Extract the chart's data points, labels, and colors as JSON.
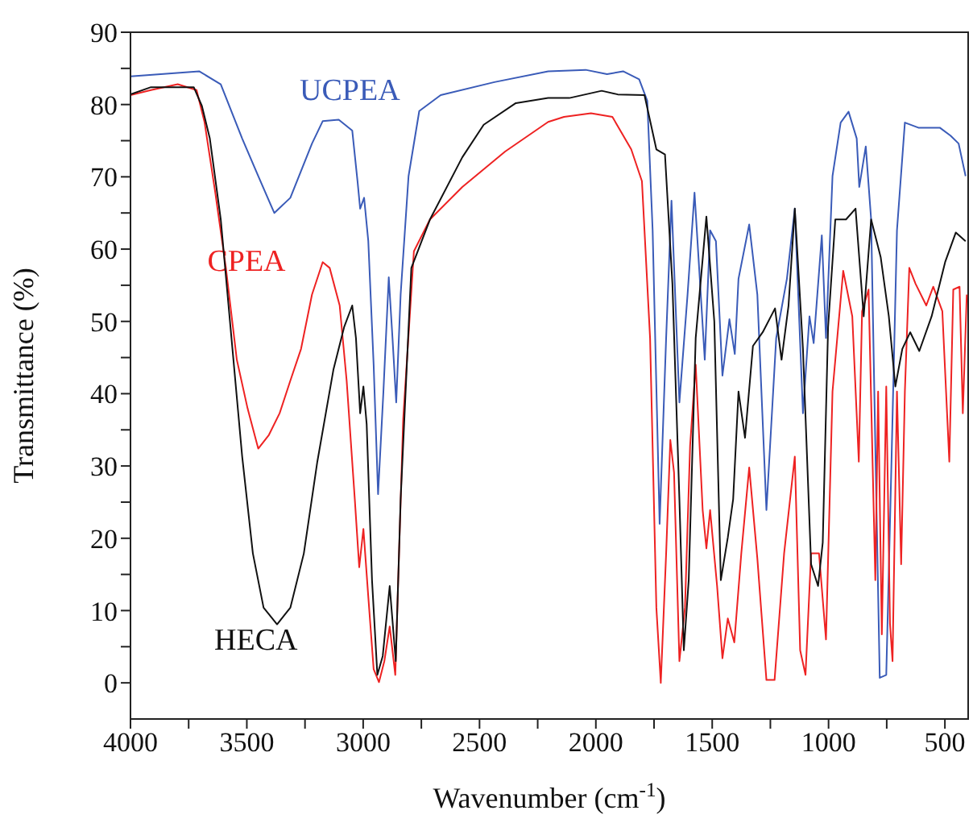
{
  "chart_data": {
    "type": "line",
    "xlabel": "Wavenumber (cm$^{-1}$)",
    "ylabel": "Transmittance (%)",
    "xlim": [
      4000,
      400
    ],
    "xticks": [
      4000,
      {
        "value": 3750,
        "label": null
      },
      3500,
      {
        "value": 3250,
        "label": null
      },
      3000,
      {
        "value": 2750,
        "label": null
      },
      2500,
      {
        "value": 2250,
        "label": null
      },
      2000,
      {
        "value": 1750,
        "label": null
      },
      1500,
      {
        "value": 1250,
        "label": null
      },
      1000,
      {
        "value": 750,
        "label": null
      },
      500
    ],
    "ylim": [
      -5,
      90
    ],
    "yticks": [
      0,
      {
        "value": 5,
        "label": null
      },
      10,
      {
        "value": 15,
        "label": null
      },
      20,
      {
        "value": 25,
        "label": null
      },
      30,
      {
        "value": 35,
        "label": null
      },
      40,
      {
        "value": 45,
        "label": null
      },
      50,
      {
        "value": 55,
        "label": null
      },
      60,
      {
        "value": 65,
        "label": null
      },
      70,
      {
        "value": 75,
        "label": null
      },
      80,
      {
        "value": 85,
        "label": null
      },
      90
    ],
    "series": [
      {
        "name": "UCPEA",
        "color": "#3a5bb8",
        "x": [
          4000,
          3705,
          3612,
          3520,
          3451,
          3382,
          3313,
          3220,
          3174,
          3105,
          3047,
          3024,
          3013,
          2996,
          2978,
          2955,
          2936,
          2913,
          2890,
          2874,
          2858,
          2839,
          2805,
          2759,
          2667,
          2436,
          2205,
          2044,
          1952,
          1883,
          1814,
          1779,
          1756,
          1726,
          1698,
          1675,
          1641,
          1606,
          1576,
          1532,
          1509,
          1484,
          1456,
          1426,
          1403,
          1387,
          1341,
          1306,
          1267,
          1225,
          1179,
          1145,
          1110,
          1082,
          1064,
          1029,
          1011,
          983,
          948,
          914,
          879,
          868,
          840,
          817,
          799,
          780,
          752,
          729,
          706,
          672,
          614,
          522,
          476,
          441,
          411
        ],
        "values": [
          83.9,
          84.6,
          82.8,
          75.3,
          70.1,
          65.0,
          67.1,
          74.6,
          77.7,
          77.9,
          76.4,
          69.3,
          65.6,
          67.1,
          61.1,
          44.0,
          26.1,
          40.3,
          56.1,
          47.7,
          38.8,
          53.7,
          70.1,
          79.1,
          81.3,
          83.1,
          84.6,
          84.8,
          84.2,
          84.6,
          83.5,
          80.5,
          62.6,
          22.0,
          47.7,
          66.7,
          38.8,
          53.7,
          67.8,
          44.7,
          62.6,
          61.1,
          42.5,
          50.3,
          45.5,
          55.9,
          63.4,
          53.7,
          23.9,
          47.7,
          55.9,
          65.6,
          37.3,
          50.7,
          47.0,
          61.9,
          47.7,
          70.1,
          77.5,
          79.0,
          75.3,
          68.6,
          74.2,
          64.1,
          32.8,
          0.7,
          1.1,
          31.3,
          62.6,
          77.5,
          76.8,
          76.8,
          75.7,
          74.6,
          70.1
        ]
      },
      {
        "name": "CPEA",
        "color": "#ee2222",
        "x": [
          4000,
          3912,
          3797,
          3716,
          3682,
          3636,
          3590,
          3543,
          3497,
          3451,
          3405,
          3359,
          3313,
          3267,
          3220,
          3174,
          3144,
          3101,
          3071,
          3036,
          3017,
          2999,
          2978,
          2955,
          2932,
          2909,
          2886,
          2862,
          2828,
          2782,
          2713,
          2574,
          2390,
          2205,
          2137,
          2021,
          1929,
          1848,
          1802,
          1767,
          1740,
          1721,
          1698,
          1680,
          1664,
          1641,
          1617,
          1595,
          1571,
          1541,
          1525,
          1509,
          1479,
          1456,
          1433,
          1405,
          1375,
          1341,
          1306,
          1267,
          1232,
          1191,
          1145,
          1122,
          1099,
          1075,
          1041,
          1011,
          983,
          937,
          898,
          870,
          856,
          828,
          799,
          787,
          771,
          752,
          736,
          725,
          706,
          688,
          672,
          653,
          626,
          580,
          550,
          511,
          481,
          464,
          437,
          423,
          406
        ],
        "values": [
          81.3,
          82.0,
          82.8,
          82.0,
          77.6,
          67.9,
          57.4,
          44.7,
          38.0,
          32.4,
          34.3,
          37.3,
          41.8,
          46.2,
          53.7,
          58.2,
          57.4,
          52.2,
          41.8,
          25.4,
          16.0,
          21.3,
          11.9,
          1.9,
          0.1,
          3.0,
          7.8,
          1.1,
          36.5,
          59.7,
          64.1,
          68.6,
          73.5,
          77.6,
          78.3,
          78.8,
          78.3,
          73.8,
          69.4,
          47.7,
          10.4,
          0,
          17.9,
          33.6,
          29.1,
          3.0,
          10.4,
          32.8,
          44.0,
          23.9,
          18.6,
          23.9,
          13.4,
          3.4,
          8.9,
          5.6,
          17.9,
          29.8,
          17.2,
          0.4,
          0.4,
          17.9,
          31.3,
          4.5,
          1.1,
          17.9,
          17.9,
          6.0,
          40.3,
          57.0,
          50.7,
          30.6,
          51.4,
          54.4,
          14.2,
          40.3,
          6.7,
          41.0,
          8.2,
          3.0,
          40.3,
          16.4,
          40.3,
          57.4,
          55.2,
          52.2,
          54.8,
          51.4,
          30.6,
          54.4,
          54.8,
          37.3,
          53.7
        ]
      },
      {
        "name": "HECA",
        "color": "#111111",
        "x": [
          4000,
          3912,
          3728,
          3693,
          3659,
          3612,
          3566,
          3520,
          3474,
          3428,
          3370,
          3313,
          3255,
          3197,
          3128,
          3082,
          3047,
          3031,
          3013,
          2999,
          2985,
          2962,
          2939,
          2916,
          2886,
          2860,
          2839,
          2793,
          2713,
          2574,
          2482,
          2344,
          2205,
          2114,
          1975,
          1906,
          1791,
          1740,
          1703,
          1671,
          1641,
          1622,
          1601,
          1571,
          1525,
          1491,
          1463,
          1433,
          1410,
          1387,
          1359,
          1325,
          1283,
          1230,
          1202,
          1172,
          1145,
          1110,
          1075,
          1045,
          1025,
          1002,
          971,
          925,
          884,
          849,
          817,
          776,
          741,
          713,
          683,
          649,
          610,
          557,
          499,
          453,
          411
        ],
        "values": [
          81.4,
          82.4,
          82.4,
          79.8,
          75.3,
          64.1,
          47.7,
          31.3,
          17.9,
          10.4,
          8.1,
          10.4,
          17.9,
          30.6,
          43.3,
          49.2,
          52.2,
          47.7,
          37.3,
          41.0,
          35.8,
          14.2,
          1.1,
          3.7,
          13.4,
          3.0,
          25.4,
          57.4,
          64.1,
          72.7,
          77.2,
          80.2,
          80.9,
          80.9,
          81.9,
          81.4,
          81.3,
          73.8,
          73.1,
          55.2,
          25.4,
          4.5,
          14.2,
          47.7,
          64.5,
          50.0,
          14.2,
          20.1,
          25.4,
          40.3,
          33.9,
          46.6,
          48.5,
          51.8,
          44.7,
          52.2,
          65.6,
          46.2,
          16.4,
          13.4,
          19.4,
          49.2,
          64.1,
          64.1,
          65.6,
          50.7,
          64.1,
          58.9,
          50.7,
          41.0,
          46.2,
          48.5,
          45.9,
          50.7,
          58.2,
          62.3,
          61.1
        ]
      }
    ]
  }
}
